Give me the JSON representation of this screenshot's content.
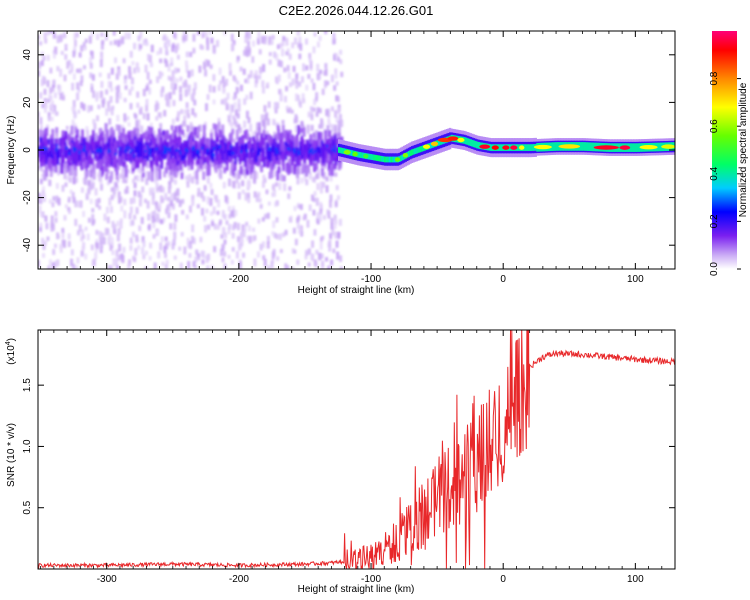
{
  "figure_title": "C2E2.2026.044.12.26.G01",
  "chart_data": [
    {
      "type": "heatmap",
      "title": "C2E2.2026.044.12.26.G01",
      "xlabel": "Height of straight line (km)",
      "ylabel": "Frequency (Hz)",
      "xlim": [
        -352,
        130
      ],
      "ylim": [
        -50,
        50
      ],
      "xticks": [
        -300,
        -200,
        -100,
        0,
        100
      ],
      "xtick_labels": [
        "-300",
        "-200",
        "-100",
        "0",
        "100"
      ],
      "yticks": [
        -40,
        -20,
        0,
        20,
        40
      ],
      "ytick_labels": [
        "-40",
        "-20",
        "0",
        "20",
        "40"
      ],
      "colorbar": {
        "label": "Normalized spectral amplitude",
        "range": [
          0.0,
          1.0
        ],
        "ticks": [
          0.0,
          0.2,
          0.4,
          0.6,
          0.8
        ],
        "tick_labels": [
          "0.0",
          "0.2",
          "0.4",
          "0.6",
          "0.8"
        ],
        "colors": [
          "#ffffff",
          "#c9a9f5",
          "#7a1ff0",
          "#0000ff",
          "#00ccff",
          "#00ff66",
          "#66ff00",
          "#ffff00",
          "#ff8800",
          "#ff0000",
          "#ff0077"
        ]
      },
      "features": {
        "noisy_region_x": [
          -352,
          -122
        ],
        "noisy_band_center_hz": 0,
        "noisy_band_halfwidth_hz": 6,
        "signal_track": {
          "x": [
            -125,
            -110,
            -100,
            -90,
            -80,
            -70,
            -60,
            -50,
            -40,
            -30,
            -20,
            -10,
            0,
            10,
            20,
            40,
            60,
            80,
            100,
            130
          ],
          "frequency_hz": [
            0,
            -2,
            -3,
            -4,
            -4,
            -1,
            1,
            3,
            5,
            4,
            2,
            1,
            1,
            1,
            1,
            1.5,
            1.5,
            1,
            1,
            1.5
          ]
        }
      }
    },
    {
      "type": "line",
      "xlabel": "Height of straight line (km)",
      "ylabel": "SNR (10 * v/v)",
      "y_scale_label": "(x10",
      "y_scale_exponent": "4",
      "xlim": [
        -352,
        130
      ],
      "ylim": [
        0,
        1.95
      ],
      "xticks": [
        -300,
        -200,
        -100,
        0,
        100
      ],
      "xtick_labels": [
        "-300",
        "-200",
        "-100",
        "0",
        "100"
      ],
      "yticks": [
        0.5,
        1.0,
        1.5
      ],
      "ytick_labels": [
        "0.5",
        "1.0",
        "1.5"
      ],
      "series": [
        {
          "name": "SNR",
          "color": "#e8282a",
          "x": [
            -352,
            -300,
            -250,
            -200,
            -150,
            -130,
            -110,
            -100,
            -90,
            -80,
            -70,
            -60,
            -50,
            -40,
            -30,
            -20,
            -10,
            0,
            5,
            10,
            15,
            20,
            30,
            40,
            60,
            80,
            100,
            130
          ],
          "y": [
            0.03,
            0.03,
            0.04,
            0.03,
            0.04,
            0.05,
            0.07,
            0.1,
            0.16,
            0.25,
            0.35,
            0.48,
            0.62,
            0.72,
            0.75,
            0.9,
            1.05,
            1.2,
            1.4,
            1.55,
            1.6,
            1.65,
            1.73,
            1.76,
            1.75,
            1.73,
            1.71,
            1.69
          ]
        }
      ]
    }
  ]
}
